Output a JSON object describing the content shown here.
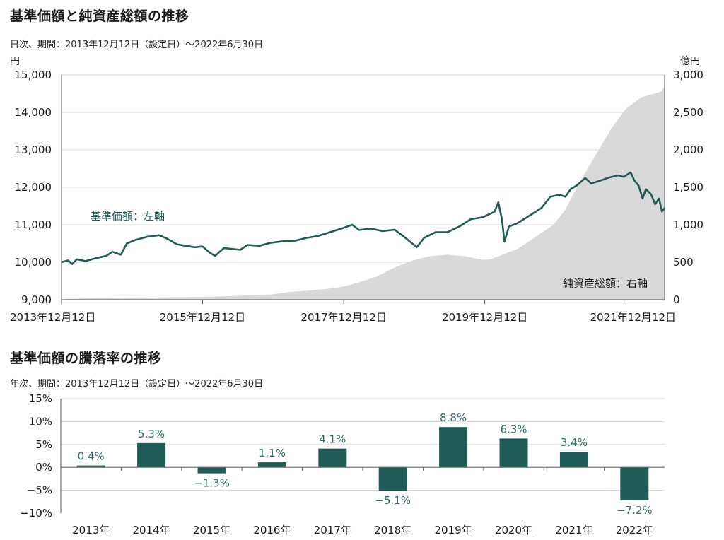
{
  "chart_data": [
    {
      "type": "line",
      "title": "基準価額と純資産総額の推移",
      "subtitle": "日次、期間：2013年12月12日（設定日）〜2022年6月30日",
      "left_unit": "円",
      "right_unit": "億円",
      "ylim_left": [
        9000,
        15000
      ],
      "ylim_right": [
        0,
        3000
      ],
      "y_ticks_left": [
        "9,000",
        "10,000",
        "11,000",
        "12,000",
        "13,000",
        "14,000",
        "15,000"
      ],
      "y_ticks_right": [
        "0",
        "500",
        "1,000",
        "1,500",
        "2,000",
        "2,500",
        "3,000"
      ],
      "x_range": [
        "2013-12-12",
        "2022-06-30"
      ],
      "x_ticks": [
        "2013年12月12日",
        "2015年12月12日",
        "2017年12月12日",
        "2019年12月12日",
        "2021年12月12日"
      ],
      "grid": true,
      "series": [
        {
          "name": "基準価額：左軸",
          "axis": "left",
          "color": "#1f5c57",
          "points": [
            [
              "2013-12-12",
              10000
            ],
            [
              "2014-01-15",
              10050
            ],
            [
              "2014-02-05",
              9950
            ],
            [
              "2014-03-01",
              10080
            ],
            [
              "2014-04-15",
              10030
            ],
            [
              "2014-06-01",
              10100
            ],
            [
              "2014-08-01",
              10170
            ],
            [
              "2014-09-01",
              10280
            ],
            [
              "2014-10-15",
              10200
            ],
            [
              "2014-11-15",
              10500
            ],
            [
              "2015-01-01",
              10600
            ],
            [
              "2015-03-01",
              10680
            ],
            [
              "2015-05-01",
              10720
            ],
            [
              "2015-06-15",
              10620
            ],
            [
              "2015-08-01",
              10480
            ],
            [
              "2015-09-15",
              10440
            ],
            [
              "2015-11-01",
              10400
            ],
            [
              "2015-12-12",
              10420
            ],
            [
              "2016-01-20",
              10250
            ],
            [
              "2016-02-15",
              10170
            ],
            [
              "2016-04-01",
              10380
            ],
            [
              "2016-06-24",
              10330
            ],
            [
              "2016-08-01",
              10460
            ],
            [
              "2016-10-01",
              10440
            ],
            [
              "2016-12-01",
              10520
            ],
            [
              "2017-02-01",
              10560
            ],
            [
              "2017-04-01",
              10570
            ],
            [
              "2017-06-01",
              10650
            ],
            [
              "2017-08-01",
              10700
            ],
            [
              "2017-10-01",
              10800
            ],
            [
              "2017-12-01",
              10900
            ],
            [
              "2018-01-25",
              11000
            ],
            [
              "2018-03-01",
              10860
            ],
            [
              "2018-05-01",
              10900
            ],
            [
              "2018-07-01",
              10830
            ],
            [
              "2018-09-01",
              10870
            ],
            [
              "2018-10-15",
              10700
            ],
            [
              "2018-12-25",
              10400
            ],
            [
              "2019-02-01",
              10650
            ],
            [
              "2019-04-01",
              10800
            ],
            [
              "2019-06-01",
              10800
            ],
            [
              "2019-08-01",
              10950
            ],
            [
              "2019-10-01",
              11150
            ],
            [
              "2019-12-01",
              11200
            ],
            [
              "2020-02-01",
              11350
            ],
            [
              "2020-02-20",
              11600
            ],
            [
              "2020-03-10",
              11150
            ],
            [
              "2020-03-23",
              10550
            ],
            [
              "2020-04-15",
              10950
            ],
            [
              "2020-06-01",
              11050
            ],
            [
              "2020-08-01",
              11250
            ],
            [
              "2020-10-01",
              11450
            ],
            [
              "2020-11-15",
              11750
            ],
            [
              "2021-01-01",
              11800
            ],
            [
              "2021-02-01",
              11750
            ],
            [
              "2021-03-01",
              11950
            ],
            [
              "2021-04-01",
              12050
            ],
            [
              "2021-05-15",
              12250
            ],
            [
              "2021-06-15",
              12100
            ],
            [
              "2021-08-01",
              12180
            ],
            [
              "2021-09-15",
              12260
            ],
            [
              "2021-11-01",
              12320
            ],
            [
              "2021-12-01",
              12280
            ],
            [
              "2022-01-05",
              12400
            ],
            [
              "2022-01-25",
              12180
            ],
            [
              "2022-02-15",
              12050
            ],
            [
              "2022-03-08",
              11700
            ],
            [
              "2022-03-25",
              11950
            ],
            [
              "2022-04-20",
              11820
            ],
            [
              "2022-05-12",
              11550
            ],
            [
              "2022-06-01",
              11700
            ],
            [
              "2022-06-16",
              11350
            ],
            [
              "2022-06-30",
              11450
            ]
          ]
        },
        {
          "name": "純資産総額：右軸",
          "axis": "right",
          "color": "#d9d9d9",
          "type": "area",
          "points": [
            [
              "2013-12-12",
              0
            ],
            [
              "2014-01-15",
              10
            ],
            [
              "2014-06-01",
              20
            ],
            [
              "2015-01-01",
              25
            ],
            [
              "2016-01-01",
              40
            ],
            [
              "2016-06-01",
              50
            ],
            [
              "2016-12-01",
              70
            ],
            [
              "2017-03-01",
              100
            ],
            [
              "2017-06-01",
              120
            ],
            [
              "2017-09-01",
              140
            ],
            [
              "2017-12-01",
              170
            ],
            [
              "2018-03-01",
              230
            ],
            [
              "2018-06-01",
              310
            ],
            [
              "2018-09-01",
              430
            ],
            [
              "2018-12-01",
              520
            ],
            [
              "2019-03-01",
              580
            ],
            [
              "2019-06-01",
              600
            ],
            [
              "2019-09-01",
              580
            ],
            [
              "2019-12-01",
              530
            ],
            [
              "2020-01-15",
              540
            ],
            [
              "2020-03-01",
              590
            ],
            [
              "2020-06-01",
              680
            ],
            [
              "2020-09-01",
              840
            ],
            [
              "2020-12-01",
              1000
            ],
            [
              "2021-02-01",
              1200
            ],
            [
              "2021-04-01",
              1500
            ],
            [
              "2021-07-01",
              1900
            ],
            [
              "2021-10-01",
              2300
            ],
            [
              "2021-12-12",
              2550
            ],
            [
              "2022-03-01",
              2700
            ],
            [
              "2022-06-15",
              2780
            ],
            [
              "2022-06-30",
              2850
            ]
          ]
        }
      ]
    },
    {
      "type": "bar",
      "title": "基準価額の騰落率の推移",
      "subtitle": "年次、期間：2013年12月12日（設定日）〜2022年6月30日",
      "categories": [
        "2013年",
        "2014年",
        "2015年",
        "2016年",
        "2017年",
        "2018年",
        "2019年",
        "2020年",
        "2021年",
        "2022年"
      ],
      "values": [
        0.4,
        5.3,
        -1.3,
        1.1,
        4.1,
        -5.1,
        8.8,
        6.3,
        3.4,
        -7.2
      ],
      "value_labels": [
        "0.4%",
        "5.3%",
        "−1.3%",
        "1.1%",
        "4.1%",
        "−5.1%",
        "8.8%",
        "6.3%",
        "3.4%",
        "−7.2%"
      ],
      "ylim": [
        -10,
        15
      ],
      "y_ticks": [
        "−10%",
        "−5%",
        "0%",
        "5%",
        "10%",
        "15%"
      ],
      "grid": true,
      "color": "#1f5c57",
      "label_color": "#2a6e68"
    }
  ]
}
